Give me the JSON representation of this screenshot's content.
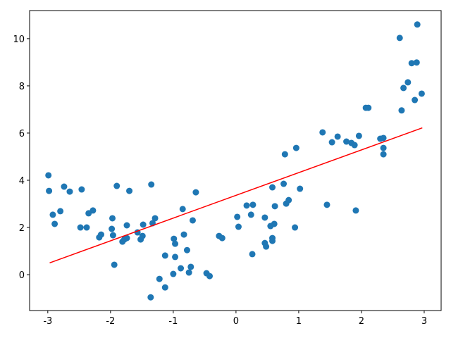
{
  "chart_data": {
    "type": "scatter",
    "xlim": [
      -3.29,
      3.27
    ],
    "ylim": [
      -1.52,
      11.19
    ],
    "xticks": [
      -3,
      -2,
      -1,
      0,
      1,
      2,
      3
    ],
    "yticks": [
      0,
      2,
      4,
      6,
      8,
      10
    ],
    "grid": false,
    "series": [
      {
        "type": "scatter",
        "color": "#1f77b4",
        "x": [
          -2.99,
          -2.98,
          -2.92,
          -2.89,
          -2.8,
          -2.74,
          -2.65,
          -2.48,
          -2.46,
          -2.38,
          -2.35,
          -2.28,
          -2.18,
          -2.15,
          -1.98,
          -1.97,
          -1.96,
          -1.94,
          -1.9,
          -1.81,
          -1.78,
          -1.74,
          -1.74,
          -1.7,
          -1.57,
          -1.52,
          -1.49,
          -1.48,
          -1.36,
          -1.35,
          -1.33,
          -1.29,
          -1.22,
          -1.13,
          -1.13,
          -1.0,
          -0.99,
          -0.97,
          -0.97,
          -0.88,
          -0.85,
          -0.83,
          -0.78,
          -0.75,
          -0.72,
          -0.69,
          -0.64,
          -0.47,
          -0.42,
          -0.27,
          -0.22,
          0.02,
          0.04,
          0.17,
          0.24,
          0.26,
          0.27,
          0.46,
          0.46,
          0.48,
          0.55,
          0.58,
          0.58,
          0.58,
          0.61,
          0.62,
          0.76,
          0.78,
          0.8,
          0.84,
          0.94,
          0.96,
          1.02,
          1.38,
          1.45,
          1.53,
          1.62,
          1.76,
          1.84,
          1.89,
          1.91,
          1.96,
          2.07,
          2.11,
          2.3,
          2.35,
          2.35,
          2.35,
          2.61,
          2.64,
          2.67,
          2.74,
          2.8,
          2.85,
          2.88,
          2.89,
          2.96
        ],
        "values": [
          4.21,
          3.55,
          2.54,
          2.15,
          2.69,
          3.73,
          3.52,
          2.0,
          3.61,
          2.0,
          2.6,
          2.72,
          1.58,
          1.7,
          1.94,
          2.39,
          1.67,
          0.42,
          3.76,
          1.4,
          1.49,
          2.09,
          1.55,
          3.55,
          1.79,
          1.49,
          1.64,
          2.12,
          -0.96,
          3.82,
          2.18,
          2.39,
          -0.18,
          -0.54,
          0.81,
          0.03,
          1.52,
          1.31,
          0.75,
          0.27,
          2.78,
          1.7,
          1.04,
          0.09,
          0.33,
          2.3,
          3.49,
          0.06,
          -0.06,
          1.64,
          1.55,
          2.45,
          2.03,
          2.93,
          2.54,
          0.87,
          2.96,
          2.42,
          1.34,
          1.19,
          2.06,
          3.7,
          1.55,
          1.43,
          2.15,
          2.9,
          3.85,
          5.1,
          3.01,
          3.16,
          2.0,
          5.37,
          3.64,
          6.03,
          2.96,
          5.61,
          5.85,
          5.64,
          5.58,
          5.49,
          2.72,
          5.88,
          7.07,
          7.07,
          5.76,
          5.79,
          5.37,
          5.1,
          10.03,
          6.96,
          7.91,
          8.15,
          8.96,
          7.4,
          8.99,
          10.6,
          7.67
        ]
      },
      {
        "type": "line",
        "color": "#ff0000",
        "x": [
          -2.97,
          2.97
        ],
        "values": [
          0.5,
          6.22
        ]
      }
    ]
  }
}
